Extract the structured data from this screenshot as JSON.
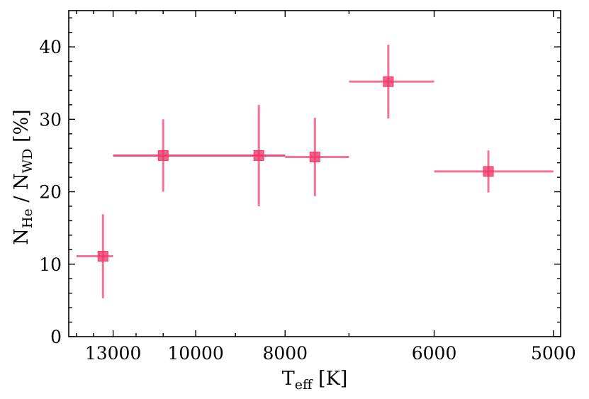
{
  "chart_data": {
    "type": "scatter",
    "title": "",
    "xscale": "reciprocal",
    "xlim": [
      15500,
      4950
    ],
    "ylim": [
      0,
      45
    ],
    "grid": false,
    "color": "#f0386b",
    "x_ticks": [
      13000,
      10000,
      8000,
      6000,
      5000
    ],
    "x_tick_labels": [
      "13000",
      "10000",
      "8000",
      "6000",
      "5000"
    ],
    "y_ticks": [
      0,
      10,
      20,
      30,
      40
    ],
    "y_tick_labels": [
      "0",
      "10",
      "20",
      "30",
      "40"
    ],
    "xlabel": {
      "main": "T",
      "sub": "eff",
      "unit": " [K]"
    },
    "ylabel": {
      "n1": "N",
      "s1": "He",
      "mid": " / N",
      "s2": "WD",
      "unit": " [%]"
    },
    "points": [
      {
        "x": 13500,
        "y": 11.1,
        "x_range": [
          15000,
          13000
        ],
        "y_err": [
          5.8,
          5.8
        ]
      },
      {
        "x": 11000,
        "y": 25.0,
        "x_range": [
          13000,
          8000
        ],
        "y_err": [
          5.0,
          5.0
        ]
      },
      {
        "x": 8500,
        "y": 25.0,
        "x_range": [
          13000,
          8000
        ],
        "y_err": [
          7.0,
          7.0
        ]
      },
      {
        "x": 7500,
        "y": 24.8,
        "x_range": [
          8000,
          7000
        ],
        "y_err": [
          5.4,
          5.4
        ]
      },
      {
        "x": 6500,
        "y": 35.2,
        "x_range": [
          7000,
          6000
        ],
        "y_err": [
          5.1,
          5.1
        ]
      },
      {
        "x": 5500,
        "y": 22.8,
        "x_range": [
          6000,
          5000
        ],
        "y_err": [
          2.9,
          2.9
        ]
      }
    ]
  }
}
